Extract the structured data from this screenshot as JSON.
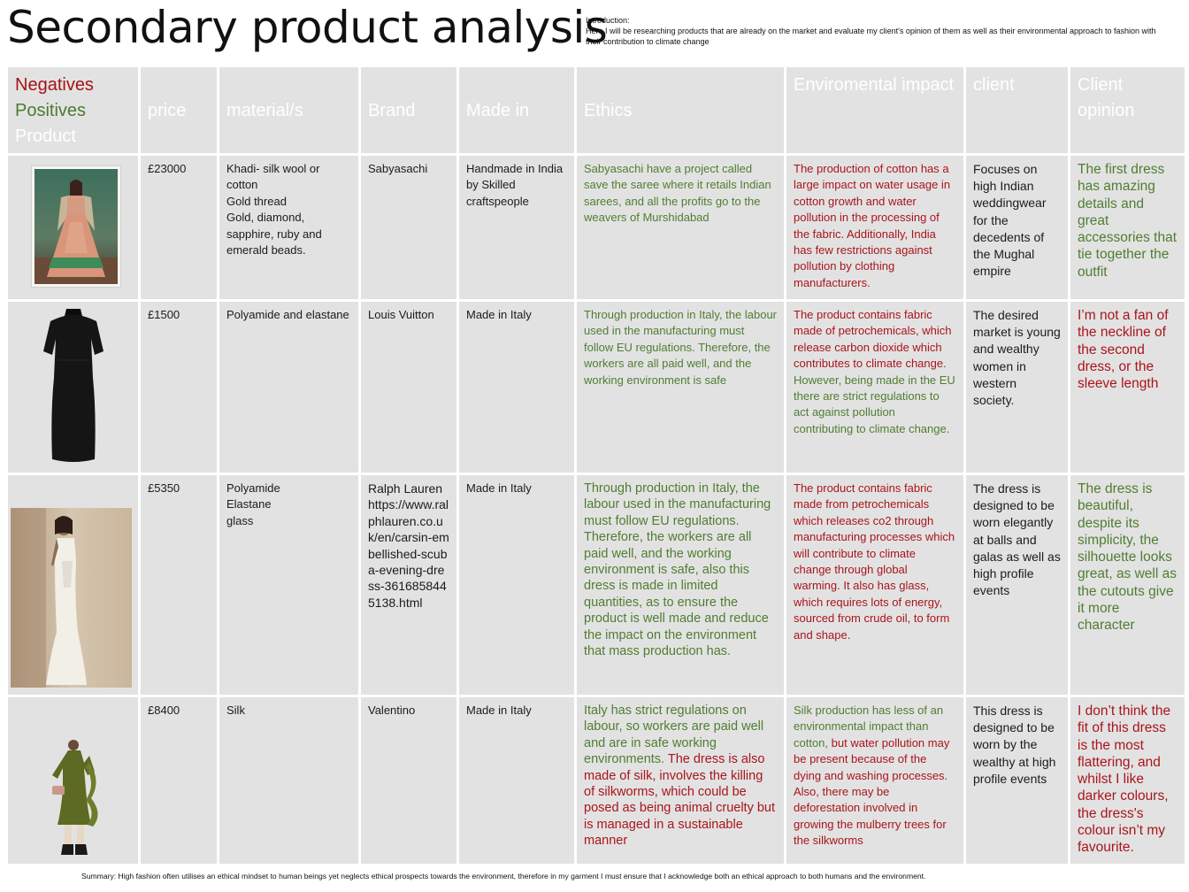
{
  "page": {
    "title": "Secondary product analysis",
    "intro_label": "Introduction:",
    "intro_text": "Here I will be researching products that are already on the market and evaluate my client's opinion of them as well as their environmental approach to fashion with their contribution to climate change",
    "summary": "Summary:  High fashion often utilises an ethical mindset to human beings yet neglects ethical prospects towards the environment, therefore in my garment I must ensure that I acknowledge both an ethical approach to both humans and the environment."
  },
  "legend": {
    "negatives": "Negatives",
    "positives": "Positives",
    "product": "Product"
  },
  "headers": {
    "price": "price",
    "material": "material/s",
    "brand": "Brand",
    "made_in": "Made in",
    "ethics": "Ethics",
    "environmental": "Enviromental impact",
    "client": "client",
    "client_opinion": "Client opinion"
  },
  "colors": {
    "negative": "#a8151b",
    "positive": "#4e7e31",
    "cell_bg": "#e3e2e2"
  },
  "rows": [
    {
      "image": "embroidered-lehenga-image",
      "price": "£23000",
      "material": [
        "Khadi- silk wool or cotton",
        "Gold thread",
        "Gold, diamond, sapphire, ruby and emerald beads."
      ],
      "brand": "Sabyasachi",
      "made_in": "Handmade in India by Skilled craftspeople",
      "ethics_pos": "Sabyasachi have a project called save the saree where it retails Indian sarees, and all the profits go to the weavers of Murshidabad",
      "ethics_neg": "",
      "env_pos": "",
      "env_neg": "The production of cotton has a large impact on water usage in cotton growth and water pollution in the processing of the fabric. Additionally, India has few restrictions against pollution by clothing manufacturers.",
      "client": "Focuses on high Indian weddingwear for the decedents of the Mughal empire",
      "opinion": "The first dress has amazing details and great accessories that tie together the outfit",
      "opinion_tone": "positive"
    },
    {
      "image": "black-short-dress-image",
      "price": "£1500",
      "material": [
        "Polyamide and elastane"
      ],
      "brand": "Louis Vuitton",
      "made_in": "Made in Italy",
      "ethics_pos": "Through production in Italy, the labour used in the manufacturing must follow EU regulations. Therefore, the workers are all paid well, and the working environment is safe",
      "ethics_neg": "",
      "env_neg": "The product contains fabric made of petrochemicals, which release carbon dioxide which contributes to  climate change.",
      "env_pos": " However, being made in the EU there are strict regulations to act against pollution contributing to climate change.",
      "client": "The desired market is young and wealthy women in western society.",
      "opinion": " I’m not a fan of the neckline of the second dress, or the sleeve length",
      "opinion_tone": "negative"
    },
    {
      "image": "white-evening-gown-image",
      "price": "£5350",
      "material": [
        "Polyamide",
        "Elastane",
        "glass"
      ],
      "brand": "Ralph Lauren https://www.ralphlauren.co.uk/en/carsin-embellished-scuba-evening-dress-3616858445138.html",
      "made_in": "Made in Italy",
      "ethics_pos": "Through production in Italy, the labour used in the manufacturing must follow EU regulations. Therefore, the workers are all paid well, and the working environment is safe, also this dress is made in limited quantities, as to ensure the product is well made and reduce the impact on the environment that mass production has.",
      "ethics_neg": "",
      "env_pos": "",
      "env_neg": "The product contains fabric made from petrochemicals which releases co2 through manufacturing processes which will contribute to climate change through global warming. It also has glass, which requires lots of energy, sourced from crude oil, to form and shape.",
      "client": "The dress is designed to be worn elegantly at balls and galas as well as high profile events",
      "opinion": " The dress is beautiful, despite its simplicity, the silhouette looks great, as well as the cutouts give it more character",
      "opinion_tone": "positive"
    },
    {
      "image": "olive-ruffle-dress-image",
      "price": "£8400",
      "material": [
        "Silk"
      ],
      "brand": "Valentino",
      "made_in": "Made in Italy",
      "ethics_pos": "Italy has strict regulations on labour, so workers are paid well and are in safe working environments.",
      "ethics_neg": " The dress is also made of silk, involves the killing of silkworms, which could be posed as being animal cruelty but is managed in a sustainable manner",
      "env_pos": "Silk production has less of an environmental impact than cotton,",
      "env_neg": " but water pollution may be present because of the dying and washing processes. Also, there may be deforestation involved in growing the mulberry trees for the silkworms",
      "client": "This dress is designed to be worn by the wealthy at high profile events",
      "opinion": " I don’t think the fit of this dress is the most flattering, and whilst I like darker colours, the dress's colour isn’t my favourite.",
      "opinion_tone": "negative"
    }
  ]
}
